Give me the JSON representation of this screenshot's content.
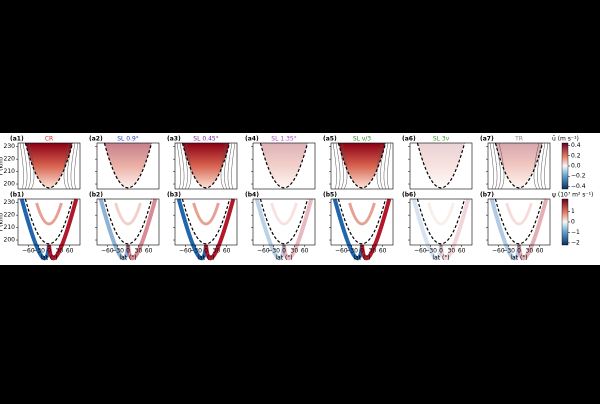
{
  "panels": [
    {
      "label": "(a1)",
      "title": "CR",
      "color": "#d62728"
    },
    {
      "label": "(a2)",
      "title": "SL 0.9°",
      "color": "#1f3fd0"
    },
    {
      "label": "(a3)",
      "title": "SL 0.45°",
      "color": "#7b1fa2"
    },
    {
      "label": "(a4)",
      "title": "SL 1.35°",
      "color": "#b040c8"
    },
    {
      "label": "(a5)",
      "title": "SL ν/3",
      "color": "#2e8b22"
    },
    {
      "label": "(a6)",
      "title": "SL 3ν",
      "color": "#3a9a2a"
    },
    {
      "label": "(a7)",
      "title": "TR",
      "color": "#888888"
    }
  ],
  "bottom_labels": [
    "(b1)",
    "(b2)",
    "(b3)",
    "(b4)",
    "(b5)",
    "(b6)",
    "(b7)"
  ],
  "y_axis": {
    "label": "r (km)",
    "ticks": [
      200,
      210,
      220,
      230
    ],
    "lim": [
      196,
      233
    ]
  },
  "x_axis": {
    "label": "lat (°)",
    "ticks": [
      {
        "value": -60,
        "label": "−60"
      },
      {
        "value": -30,
        "label": "−30"
      },
      0,
      30,
      60
    ],
    "lim": [
      -90,
      90
    ]
  },
  "colorbars": [
    {
      "label": "ū (m s⁻¹)",
      "lim": [
        -0.45,
        0.45
      ],
      "ticks": [
        0.4,
        0.2,
        {
          "value": 0,
          "label": "0.0"
        },
        {
          "value": -0.2,
          "label": "−0.2"
        },
        {
          "value": -0.4,
          "label": "−0.4"
        }
      ]
    },
    {
      "label": "ψ (10⁷ m² s⁻¹)",
      "lim": [
        -2.2,
        2.2
      ],
      "ticks": [
        1,
        0,
        {
          "value": -1,
          "label": "−1"
        },
        {
          "value": -2,
          "label": "−2"
        }
      ]
    }
  ]
}
